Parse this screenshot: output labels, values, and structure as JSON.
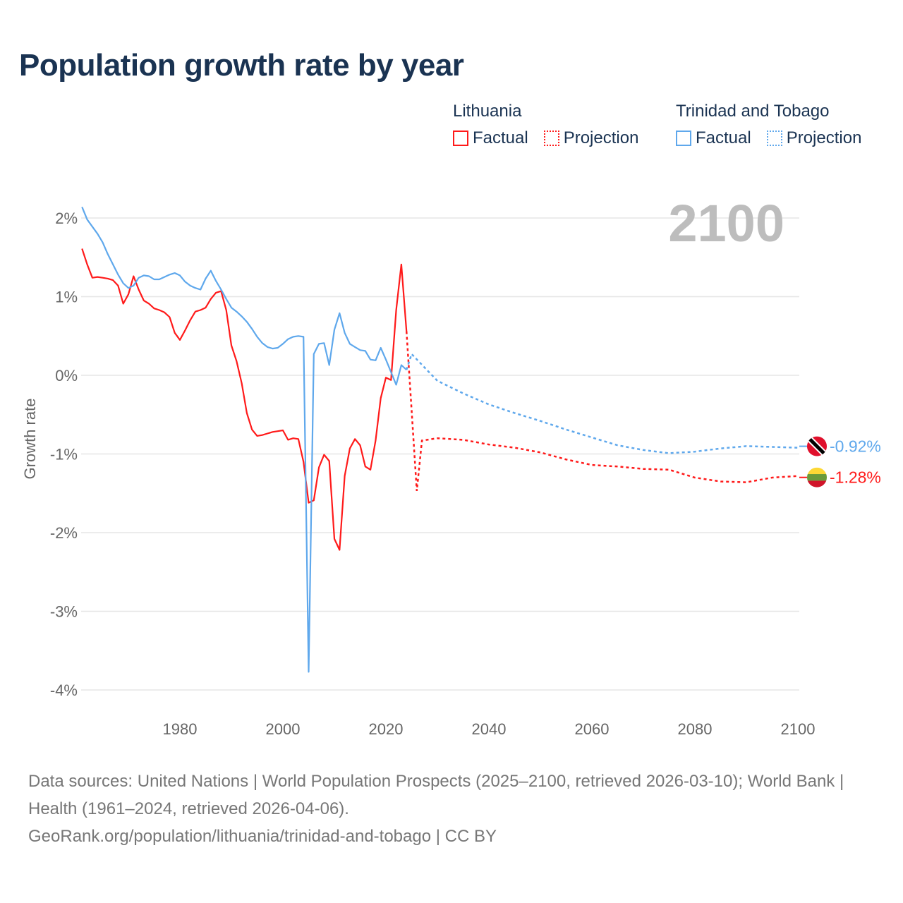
{
  "title": "Population growth rate by year",
  "legend": {
    "groups": [
      {
        "country": "Lithuania",
        "factual": "Factual",
        "projection": "Projection",
        "color": "#ff1a1a"
      },
      {
        "country": "Trinidad and Tobago",
        "factual": "Factual",
        "projection": "Projection",
        "color": "#5fa8ec"
      }
    ]
  },
  "year_watermark": "2100",
  "footer": {
    "sources": "Data sources: United Nations | World Population Prospects (2025–2100, retrieved 2026-03-10); World Bank | Health (1961–2024, retrieved 2026-04-06).",
    "credit": "GeoRank.org/population/lithuania/trinidad-and-tobago | CC BY"
  },
  "chart_data": {
    "type": "line",
    "title": "Population growth rate by year",
    "xlabel": "",
    "ylabel": "Growth rate",
    "xlim": [
      1961,
      2100
    ],
    "ylim": [
      -4.3,
      2.3
    ],
    "x_ticks": [
      1980,
      2000,
      2020,
      2040,
      2060,
      2080,
      2100
    ],
    "y_ticks": [
      2,
      1,
      0,
      -1,
      -2,
      -3,
      -4
    ],
    "y_tick_labels": [
      "2%",
      "1%",
      "0%",
      "-1%",
      "-2%",
      "-3%",
      "-4%"
    ],
    "grid": true,
    "legend_position": "top-right",
    "series": [
      {
        "name": "Lithuania",
        "color": "#ff1a1a",
        "end_label": "-1.28%",
        "flag": "lithuania-flag",
        "factual": {
          "start_year": 1961,
          "values": [
            1.61,
            1.41,
            1.24,
            1.25,
            1.24,
            1.23,
            1.21,
            1.14,
            0.91,
            1.03,
            1.26,
            1.09,
            0.95,
            0.91,
            0.85,
            0.83,
            0.8,
            0.74,
            0.54,
            0.45,
            0.57,
            0.7,
            0.81,
            0.83,
            0.86,
            0.97,
            1.05,
            1.07,
            0.83,
            0.38,
            0.18,
            -0.1,
            -0.48,
            -0.69,
            -0.77,
            -0.76,
            -0.74,
            -0.72,
            -0.71,
            -0.7,
            -0.82,
            -0.8,
            -0.81,
            -1.1,
            -1.62,
            -1.59,
            -1.17,
            -1.01,
            -1.09,
            -2.08,
            -2.22,
            -1.28,
            -0.93,
            -0.81,
            -0.89,
            -1.16,
            -1.2,
            -0.83,
            -0.29,
            -0.03,
            -0.06,
            0.83,
            1.41,
            0.56
          ]
        },
        "projection": {
          "x": [
            2024,
            2025,
            2026,
            2027,
            2030,
            2035,
            2040,
            2045,
            2050,
            2055,
            2060,
            2065,
            2070,
            2075,
            2080,
            2085,
            2090,
            2095,
            2100
          ],
          "values": [
            0.56,
            -0.45,
            -1.47,
            -0.83,
            -0.8,
            -0.82,
            -0.88,
            -0.92,
            -0.98,
            -1.07,
            -1.14,
            -1.16,
            -1.19,
            -1.2,
            -1.3,
            -1.35,
            -1.36,
            -1.3,
            -1.28
          ]
        }
      },
      {
        "name": "Trinidad and Tobago",
        "color": "#5fa8ec",
        "end_label": "-0.92%",
        "flag": "trinidad-and-tobago-flag",
        "factual": {
          "start_year": 1961,
          "values": [
            2.14,
            1.98,
            1.89,
            1.8,
            1.69,
            1.54,
            1.41,
            1.28,
            1.17,
            1.11,
            1.14,
            1.24,
            1.27,
            1.26,
            1.22,
            1.22,
            1.25,
            1.28,
            1.3,
            1.27,
            1.19,
            1.14,
            1.11,
            1.09,
            1.23,
            1.33,
            1.2,
            1.09,
            0.97,
            0.86,
            0.81,
            0.75,
            0.68,
            0.59,
            0.49,
            0.41,
            0.36,
            0.34,
            0.35,
            0.4,
            0.46,
            0.49,
            0.5,
            0.49,
            -3.77,
            0.27,
            0.4,
            0.41,
            0.13,
            0.58,
            0.79,
            0.54,
            0.4,
            0.36,
            0.32,
            0.31,
            0.2,
            0.19,
            0.35,
            0.2,
            0.04,
            -0.12,
            0.13,
            0.07
          ]
        },
        "projection": {
          "x": [
            2024,
            2025,
            2030,
            2035,
            2040,
            2045,
            2050,
            2055,
            2060,
            2065,
            2070,
            2075,
            2080,
            2085,
            2090,
            2095,
            2100
          ],
          "values": [
            0.07,
            0.27,
            -0.07,
            -0.23,
            -0.37,
            -0.48,
            -0.58,
            -0.69,
            -0.79,
            -0.89,
            -0.95,
            -0.99,
            -0.97,
            -0.93,
            -0.9,
            -0.91,
            -0.92
          ]
        }
      }
    ]
  }
}
